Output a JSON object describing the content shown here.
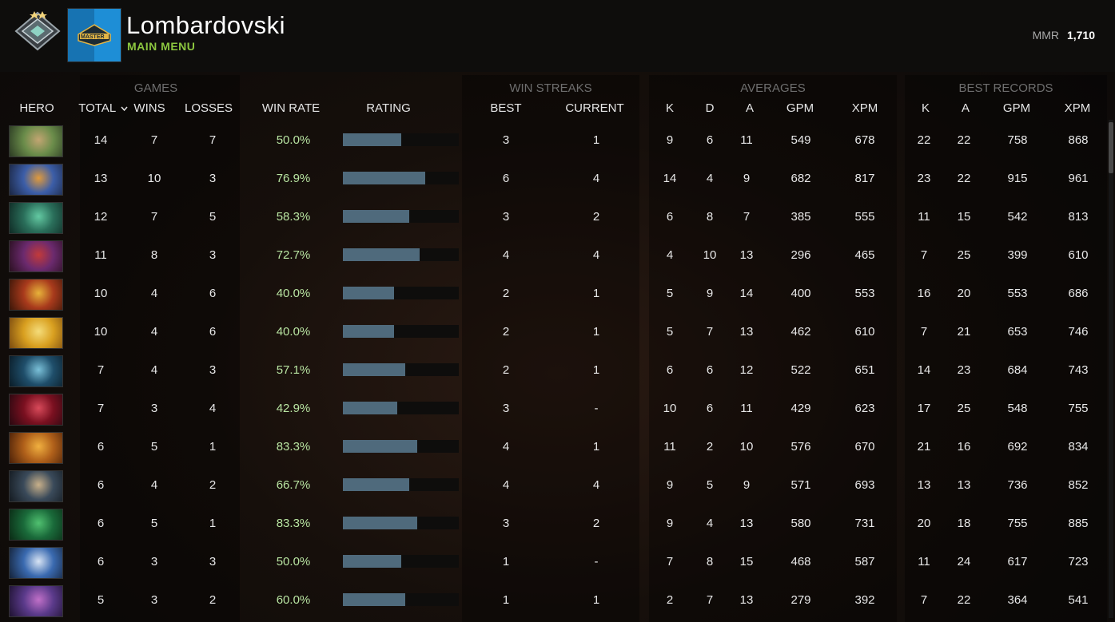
{
  "header": {
    "player_name": "Lombardovski",
    "main_menu": "MAIN MENU",
    "mmr_label": "MMR",
    "mmr_value": "1,710",
    "avatar_badge_text": "MASTER"
  },
  "groups": {
    "games": "GAMES",
    "win_streaks": "WIN STREAKS",
    "averages": "AVERAGES",
    "best_records": "BEST RECORDS"
  },
  "columns": {
    "hero": "HERO",
    "total": "TOTAL",
    "wins": "WINS",
    "losses": "LOSSES",
    "win_rate": "WIN RATE",
    "rating": "RATING",
    "best": "BEST",
    "current": "CURRENT",
    "avg_k": "K",
    "avg_d": "D",
    "avg_a": "A",
    "avg_gpm": "GPM",
    "avg_xpm": "XPM",
    "rec_k": "K",
    "rec_a": "A",
    "rec_gpm": "GPM",
    "rec_xpm": "XPM"
  },
  "colors": {
    "accent_green": "#8cc63f",
    "win_rate_text": "#b9e5a2",
    "rating_bar": "#4f6a7c"
  },
  "icons": {
    "sort": "chevron-down-icon",
    "rank": "rank-medal-icon"
  },
  "rows": [
    {
      "hero_colors": [
        "#6a8c4a",
        "#c2a572",
        "#2b3a23"
      ],
      "total": "14",
      "wins": "7",
      "losses": "7",
      "win_rate": "50.0%",
      "rating": 0.5,
      "best": "3",
      "current": "1",
      "avg_k": "9",
      "avg_d": "6",
      "avg_a": "11",
      "avg_gpm": "549",
      "avg_xpm": "678",
      "rec_k": "22",
      "rec_a": "22",
      "rec_gpm": "758",
      "rec_xpm": "868"
    },
    {
      "hero_colors": [
        "#3c5ea8",
        "#e09a3c",
        "#1b2642"
      ],
      "total": "13",
      "wins": "10",
      "losses": "3",
      "win_rate": "76.9%",
      "rating": 0.71,
      "best": "6",
      "current": "4",
      "avg_k": "14",
      "avg_d": "4",
      "avg_a": "9",
      "avg_gpm": "682",
      "avg_xpm": "817",
      "rec_k": "23",
      "rec_a": "22",
      "rec_gpm": "915",
      "rec_xpm": "961"
    },
    {
      "hero_colors": [
        "#2a6e5a",
        "#63c9a2",
        "#0f2a24"
      ],
      "total": "12",
      "wins": "7",
      "losses": "5",
      "win_rate": "58.3%",
      "rating": 0.57,
      "best": "3",
      "current": "2",
      "avg_k": "6",
      "avg_d": "8",
      "avg_a": "7",
      "avg_gpm": "385",
      "avg_xpm": "555",
      "rec_k": "11",
      "rec_a": "15",
      "rec_gpm": "542",
      "rec_xpm": "813"
    },
    {
      "hero_colors": [
        "#6b2a6e",
        "#c23a3a",
        "#2a1020"
      ],
      "total": "11",
      "wins": "8",
      "losses": "3",
      "win_rate": "72.7%",
      "rating": 0.66,
      "best": "4",
      "current": "4",
      "avg_k": "4",
      "avg_d": "10",
      "avg_a": "13",
      "avg_gpm": "296",
      "avg_xpm": "465",
      "rec_k": "7",
      "rec_a": "25",
      "rec_gpm": "399",
      "rec_xpm": "610"
    },
    {
      "hero_colors": [
        "#a83a1c",
        "#e7b23a",
        "#3a1608"
      ],
      "total": "10",
      "wins": "4",
      "losses": "6",
      "win_rate": "40.0%",
      "rating": 0.44,
      "best": "2",
      "current": "1",
      "avg_k": "5",
      "avg_d": "9",
      "avg_a": "14",
      "avg_gpm": "400",
      "avg_xpm": "553",
      "rec_k": "16",
      "rec_a": "20",
      "rec_gpm": "553",
      "rec_xpm": "686"
    },
    {
      "hero_colors": [
        "#d9a020",
        "#f4dc7a",
        "#7a4a10"
      ],
      "total": "10",
      "wins": "4",
      "losses": "6",
      "win_rate": "40.0%",
      "rating": 0.44,
      "best": "2",
      "current": "1",
      "avg_k": "5",
      "avg_d": "7",
      "avg_a": "13",
      "avg_gpm": "462",
      "avg_xpm": "610",
      "rec_k": "7",
      "rec_a": "21",
      "rec_gpm": "653",
      "rec_xpm": "746"
    },
    {
      "hero_colors": [
        "#1f4e6a",
        "#7ac0d8",
        "#0a1b26"
      ],
      "total": "7",
      "wins": "4",
      "losses": "3",
      "win_rate": "57.1%",
      "rating": 0.54,
      "best": "2",
      "current": "1",
      "avg_k": "6",
      "avg_d": "6",
      "avg_a": "12",
      "avg_gpm": "522",
      "avg_xpm": "651",
      "rec_k": "14",
      "rec_a": "23",
      "rec_gpm": "684",
      "rec_xpm": "743"
    },
    {
      "hero_colors": [
        "#7a1020",
        "#d84a5a",
        "#280810"
      ],
      "total": "7",
      "wins": "3",
      "losses": "4",
      "win_rate": "42.9%",
      "rating": 0.47,
      "best": "3",
      "current": "-",
      "avg_k": "10",
      "avg_d": "6",
      "avg_a": "11",
      "avg_gpm": "429",
      "avg_xpm": "623",
      "rec_k": "17",
      "rec_a": "25",
      "rec_gpm": "548",
      "rec_xpm": "755"
    },
    {
      "hero_colors": [
        "#b0601a",
        "#f0b040",
        "#4a2008"
      ],
      "total": "6",
      "wins": "5",
      "losses": "1",
      "win_rate": "83.3%",
      "rating": 0.64,
      "best": "4",
      "current": "1",
      "avg_k": "11",
      "avg_d": "2",
      "avg_a": "10",
      "avg_gpm": "576",
      "avg_xpm": "670",
      "rec_k": "21",
      "rec_a": "16",
      "rec_gpm": "692",
      "rec_xpm": "834"
    },
    {
      "hero_colors": [
        "#3a4a5a",
        "#c8b08a",
        "#141a20"
      ],
      "total": "6",
      "wins": "4",
      "losses": "2",
      "win_rate": "66.7%",
      "rating": 0.57,
      "best": "4",
      "current": "4",
      "avg_k": "9",
      "avg_d": "5",
      "avg_a": "9",
      "avg_gpm": "571",
      "avg_xpm": "693",
      "rec_k": "13",
      "rec_a": "13",
      "rec_gpm": "736",
      "rec_xpm": "852"
    },
    {
      "hero_colors": [
        "#1a6a3a",
        "#50c070",
        "#0a2a14"
      ],
      "total": "6",
      "wins": "5",
      "losses": "1",
      "win_rate": "83.3%",
      "rating": 0.64,
      "best": "3",
      "current": "2",
      "avg_k": "9",
      "avg_d": "4",
      "avg_a": "13",
      "avg_gpm": "580",
      "avg_xpm": "731",
      "rec_k": "20",
      "rec_a": "18",
      "rec_gpm": "755",
      "rec_xpm": "885"
    },
    {
      "hero_colors": [
        "#3a6ab0",
        "#d8e4f4",
        "#142238"
      ],
      "total": "6",
      "wins": "3",
      "losses": "3",
      "win_rate": "50.0%",
      "rating": 0.5,
      "best": "1",
      "current": "-",
      "avg_k": "7",
      "avg_d": "8",
      "avg_a": "15",
      "avg_gpm": "468",
      "avg_xpm": "587",
      "rec_k": "11",
      "rec_a": "24",
      "rec_gpm": "617",
      "rec_xpm": "723"
    },
    {
      "hero_colors": [
        "#5a3a8a",
        "#c070c8",
        "#1e1230"
      ],
      "total": "5",
      "wins": "3",
      "losses": "2",
      "win_rate": "60.0%",
      "rating": 0.54,
      "best": "1",
      "current": "1",
      "avg_k": "2",
      "avg_d": "7",
      "avg_a": "13",
      "avg_gpm": "279",
      "avg_xpm": "392",
      "rec_k": "7",
      "rec_a": "22",
      "rec_gpm": "364",
      "rec_xpm": "541"
    }
  ]
}
